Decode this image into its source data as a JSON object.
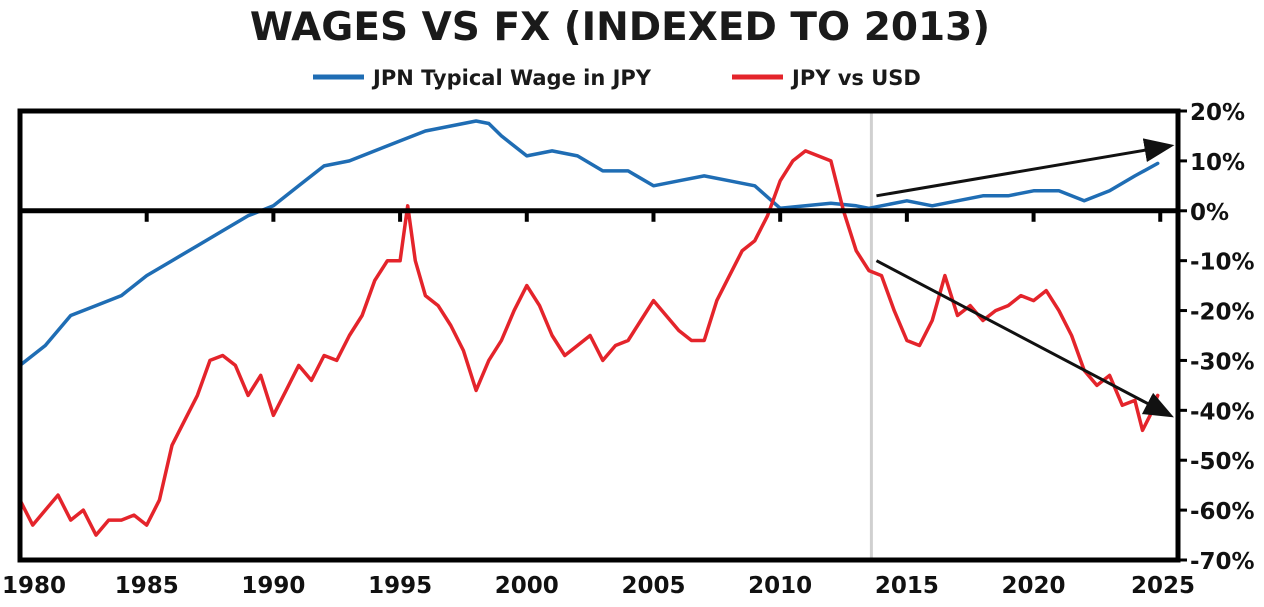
{
  "colors": {
    "wage": "#1f6db4",
    "fx": "#e4242b",
    "frame": "#000000",
    "marker": "#d0d0d0",
    "arrow": "#111111"
  },
  "chart_data": {
    "type": "line",
    "title": "WAGES VS FX (INDEXED TO 2013)",
    "legend_position": "top-center",
    "grid": false,
    "xlabel": "",
    "ylabel": "",
    "xlim": [
      1980,
      2025.7
    ],
    "ylim": [
      -70,
      20
    ],
    "x_ticks": [
      "1980",
      "1985",
      "1990",
      "1995",
      "2000",
      "2005",
      "2010",
      "2015",
      "2020",
      "2025"
    ],
    "y_ticks": [
      "20%",
      "10%",
      "0%",
      "-10%",
      "-20%",
      "-30%",
      "-40%",
      "-50%",
      "-60%",
      "-70%"
    ],
    "y_axis_side": "right",
    "reference_line_y": 0,
    "vertical_marker_x": 2013.6,
    "series": [
      {
        "name": "JPN Typical Wage in JPY",
        "color": "#1f6db4",
        "x": [
          1980,
          1981,
          1982,
          1983,
          1984,
          1985,
          1986,
          1987,
          1988,
          1989,
          1990,
          1991,
          1992,
          1993,
          1994,
          1995,
          1996,
          1997,
          1998,
          1998.5,
          1999,
          2000,
          2001,
          2002,
          2003,
          2004,
          2005,
          2006,
          2007,
          2008,
          2009,
          2010,
          2011,
          2012,
          2013,
          2013.5,
          2014,
          2015,
          2016,
          2017,
          2018,
          2019,
          2020,
          2021,
          2022,
          2023,
          2024,
          2024.9
        ],
        "values": [
          -31,
          -27,
          -21,
          -19,
          -17,
          -13,
          -10,
          -7,
          -4,
          -1,
          1,
          5,
          9,
          10,
          12,
          14,
          16,
          17,
          18,
          17.5,
          15,
          11,
          12,
          11,
          8,
          8,
          5,
          6,
          7,
          6,
          5,
          0.5,
          1,
          1.5,
          1,
          0.5,
          1,
          2,
          1,
          2,
          3,
          3,
          4,
          4,
          2,
          4,
          7,
          9.5
        ]
      },
      {
        "name": "JPY vs USD",
        "color": "#e4242b",
        "x": [
          1980,
          1980.5,
          1981,
          1981.5,
          1982,
          1982.5,
          1983,
          1983.5,
          1984,
          1984.5,
          1985,
          1985.5,
          1986,
          1986.5,
          1987,
          1987.5,
          1988,
          1988.5,
          1989,
          1989.5,
          1990,
          1990.5,
          1991,
          1991.5,
          1992,
          1992.5,
          1993,
          1993.5,
          1994,
          1994.5,
          1995,
          1995.3,
          1995.6,
          1996,
          1996.5,
          1997,
          1997.5,
          1998,
          1998.5,
          1999,
          1999.5,
          2000,
          2000.5,
          2001,
          2001.5,
          2002,
          2002.5,
          2003,
          2003.5,
          2004,
          2004.5,
          2005,
          2005.5,
          2006,
          2006.5,
          2007,
          2007.5,
          2008,
          2008.5,
          2009,
          2009.5,
          2010,
          2010.5,
          2011,
          2011.5,
          2012,
          2012.5,
          2013,
          2013.5,
          2014,
          2014.5,
          2015,
          2015.5,
          2016,
          2016.5,
          2017,
          2017.5,
          2018,
          2018.5,
          2019,
          2019.5,
          2020,
          2020.5,
          2021,
          2021.5,
          2022,
          2022.5,
          2023,
          2023.5,
          2024,
          2024.3,
          2024.6,
          2024.9
        ],
        "values": [
          -58,
          -63,
          -60,
          -57,
          -62,
          -60,
          -65,
          -62,
          -62,
          -61,
          -63,
          -58,
          -47,
          -42,
          -37,
          -30,
          -29,
          -31,
          -37,
          -33,
          -41,
          -36,
          -31,
          -34,
          -29,
          -30,
          -25,
          -21,
          -14,
          -10,
          -10,
          1,
          -10,
          -17,
          -19,
          -23,
          -28,
          -36,
          -30,
          -26,
          -20,
          -15,
          -19,
          -25,
          -29,
          -27,
          -25,
          -30,
          -27,
          -26,
          -22,
          -18,
          -21,
          -24,
          -26,
          -26,
          -18,
          -13,
          -8,
          -6,
          -1,
          6,
          10,
          12,
          11,
          10,
          0,
          -8,
          -12,
          -13,
          -20,
          -26,
          -27,
          -22,
          -13,
          -21,
          -19,
          -22,
          -20,
          -19,
          -17,
          -18,
          -16,
          -20,
          -25,
          -32,
          -35,
          -33,
          -39,
          -38,
          -44,
          -41,
          -37
        ]
      }
    ],
    "arrows": [
      {
        "direction": "up",
        "from": {
          "x": 2013.8,
          "y": 3
        },
        "to": {
          "x": 2025.7,
          "y": 13
        }
      },
      {
        "direction": "down",
        "from": {
          "x": 2013.8,
          "y": -10
        },
        "to": {
          "x": 2025.7,
          "y": -41
        }
      }
    ]
  }
}
